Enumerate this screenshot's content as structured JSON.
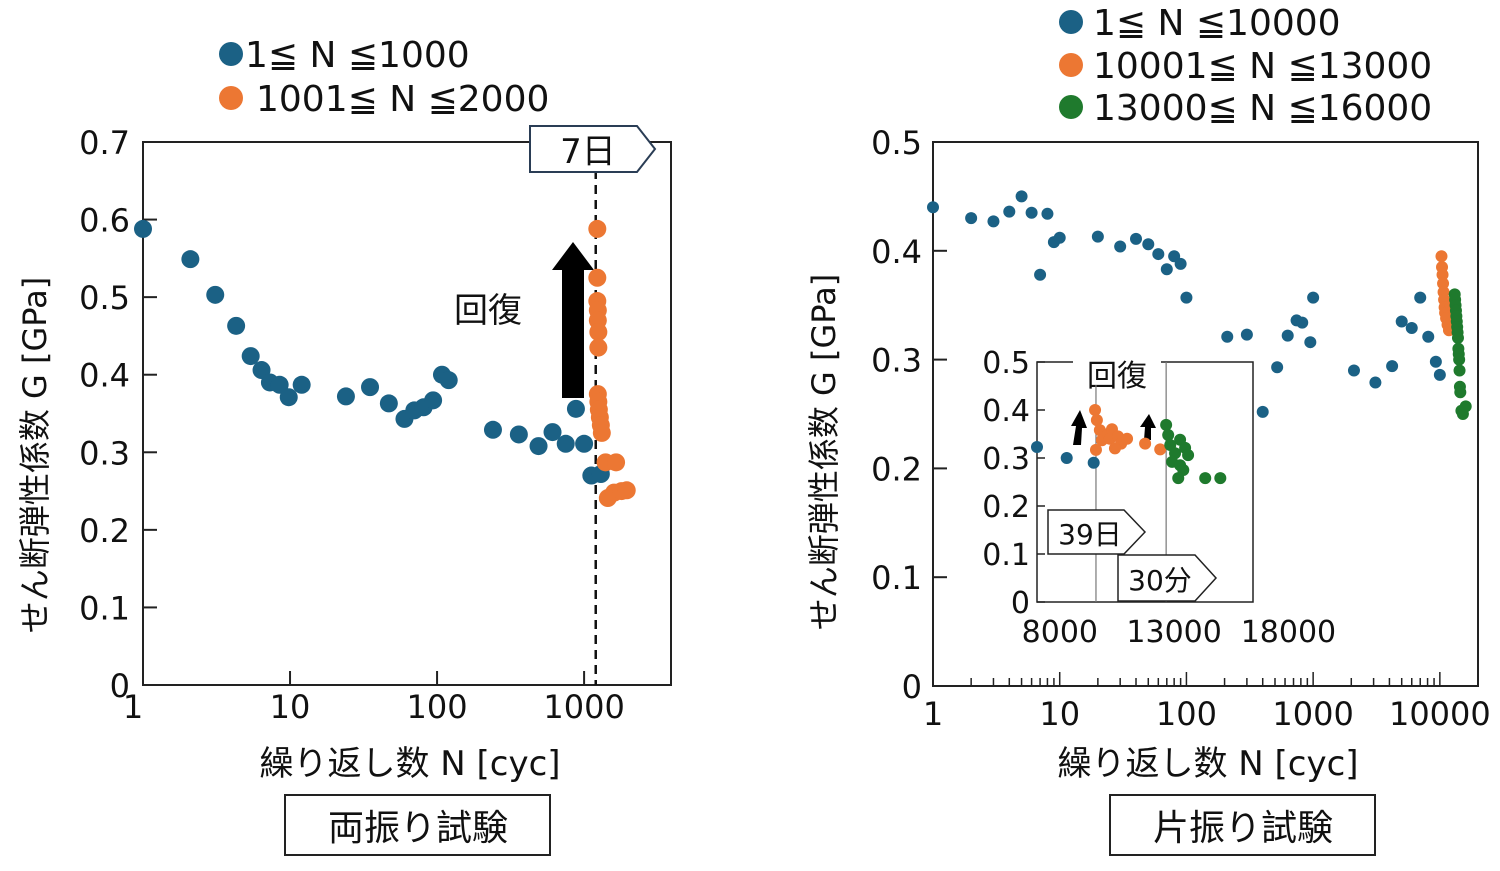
{
  "colors": {
    "blue": "#1b6185",
    "orange": "#ec7733",
    "green": "#1f7a2d",
    "axis": "#222222"
  },
  "chart_data": [
    {
      "type": "scatter",
      "caption": "両振り試験",
      "xlabel": "繰り返し数 N [cyc]",
      "ylabel": "せん断弾性係数 G [GPa]",
      "xscale": "log",
      "xlim": [
        1,
        3900
      ],
      "ylim": [
        0,
        0.7
      ],
      "xticks": [
        "1",
        "10",
        "100",
        "1000"
      ],
      "yticks": [
        "0",
        "0.1",
        "0.2",
        "0.3",
        "0.4",
        "0.5",
        "0.6",
        "0.7"
      ],
      "legend_position": "top",
      "annotations": {
        "vline_label": "7日",
        "vline_x": 1200,
        "arrow_label": "回復"
      },
      "series": [
        {
          "name": "1≦ N ≦1000",
          "color_key": "blue",
          "x": [
            1,
            2.1,
            3.1,
            4.3,
            5.4,
            6.4,
            7.3,
            8.5,
            9.8,
            12,
            24,
            35,
            47,
            60,
            70,
            81,
            94,
            108,
            120,
            240,
            360,
            490,
            610,
            750,
            880,
            1000,
            1120,
            1300
          ],
          "y": [
            0.588,
            0.549,
            0.503,
            0.463,
            0.424,
            0.406,
            0.39,
            0.387,
            0.371,
            0.387,
            0.372,
            0.384,
            0.363,
            0.343,
            0.354,
            0.358,
            0.367,
            0.4,
            0.393,
            0.329,
            0.323,
            0.308,
            0.326,
            0.311,
            0.356,
            0.311,
            0.27,
            0.272
          ]
        },
        {
          "name": "1001≦ N ≦2000",
          "color_key": "orange",
          "x": [
            1230,
            1230,
            1230,
            1240,
            1240,
            1250,
            1250,
            1240,
            1250,
            1260,
            1280,
            1300,
            1320,
            1400,
            1650,
            1450,
            1600,
            1800,
            1950
          ],
          "y": [
            0.588,
            0.525,
            0.495,
            0.483,
            0.47,
            0.455,
            0.435,
            0.375,
            0.365,
            0.355,
            0.345,
            0.335,
            0.325,
            0.287,
            0.287,
            0.241,
            0.248,
            0.25,
            0.251
          ]
        }
      ]
    },
    {
      "type": "scatter",
      "caption": "片振り試験",
      "xlabel": "繰り返し数 N [cyc]",
      "ylabel": "せん断弾性係数 G [GPa]",
      "xscale": "log",
      "xlim": [
        1,
        20000
      ],
      "ylim": [
        0,
        0.5
      ],
      "xticks": [
        "1",
        "10",
        "100",
        "1000",
        "10000"
      ],
      "yticks": [
        "0",
        "0.1",
        "0.2",
        "0.3",
        "0.4",
        "0.5"
      ],
      "legend_position": "top",
      "series": [
        {
          "name": "1≦ N ≦10000",
          "color_key": "blue",
          "x": [
            1,
            2,
            3,
            4,
            5,
            6,
            7,
            8,
            9,
            10,
            20,
            30,
            40,
            50,
            60,
            70,
            80,
            90,
            100,
            210,
            300,
            400,
            520,
            630,
            740,
            820,
            950,
            1000,
            2100,
            3100,
            4200,
            5000,
            6000,
            7000,
            8100,
            9300,
            10000
          ],
          "y": [
            0.44,
            0.43,
            0.427,
            0.436,
            0.45,
            0.435,
            0.378,
            0.434,
            0.408,
            0.412,
            0.413,
            0.404,
            0.411,
            0.406,
            0.397,
            0.383,
            0.395,
            0.388,
            0.357,
            0.321,
            0.323,
            0.252,
            0.293,
            0.322,
            0.336,
            0.334,
            0.316,
            0.357,
            0.29,
            0.279,
            0.294,
            0.335,
            0.329,
            0.357,
            0.321,
            0.298,
            0.286
          ]
        },
        {
          "name": "10001≦ N ≦13000",
          "color_key": "orange",
          "x": [
            10300,
            10400,
            10500,
            10600,
            10700,
            10800,
            10900,
            11000,
            11200,
            11500,
            11800,
            12200
          ],
          "y": [
            0.395,
            0.385,
            0.378,
            0.37,
            0.362,
            0.355,
            0.348,
            0.343,
            0.338,
            0.332,
            0.327,
            0.35
          ]
        },
        {
          "name": "13000≦ N ≦16000",
          "color_key": "green",
          "x": [
            13100,
            13200,
            13300,
            13400,
            13500,
            13600,
            13700,
            13800,
            13900,
            14000,
            14100,
            14200,
            14300,
            14400,
            14500,
            14800,
            15200,
            16000
          ],
          "y": [
            0.36,
            0.355,
            0.35,
            0.345,
            0.34,
            0.335,
            0.33,
            0.325,
            0.32,
            0.31,
            0.305,
            0.3,
            0.29,
            0.275,
            0.27,
            0.253,
            0.25,
            0.257
          ]
        }
      ],
      "inset": {
        "xlim": [
          7350,
          16800
        ],
        "ylim": [
          0,
          0.5
        ],
        "xticks": [
          "8000",
          "13000",
          "18000"
        ],
        "yticks": [
          "0",
          "0.1",
          "0.2",
          "0.3",
          "0.4",
          "0.5"
        ],
        "annotations": {
          "arrow_label": "回復",
          "vline1_label": "39日",
          "vline1_x": 9930,
          "vline2_label": "30分",
          "vline2_x": 13000
        },
        "series": [
          {
            "color_key": "blue",
            "x": [
              7350,
              8650,
              9830
            ],
            "y": [
              0.323,
              0.3,
              0.29
            ]
          },
          {
            "color_key": "orange",
            "x": [
              9890,
              9970,
              10100,
              10190,
              9930,
              10460,
              10630,
              10540,
              10890,
              11030,
              10760,
              11290,
              12080,
              12740
            ],
            "y": [
              0.4,
              0.379,
              0.358,
              0.337,
              0.317,
              0.35,
              0.36,
              0.34,
              0.345,
              0.33,
              0.32,
              0.34,
              0.33,
              0.318
            ]
          },
          {
            "color_key": "green",
            "x": [
              13000,
              13090,
              13180,
              13390,
              13610,
              13830,
              13260,
              13610,
              13750,
              13960,
              14710,
              15370,
              13530
            ],
            "y": [
              0.369,
              0.348,
              0.327,
              0.31,
              0.338,
              0.321,
              0.292,
              0.285,
              0.275,
              0.306,
              0.258,
              0.258,
              0.258
            ]
          }
        ]
      }
    }
  ]
}
